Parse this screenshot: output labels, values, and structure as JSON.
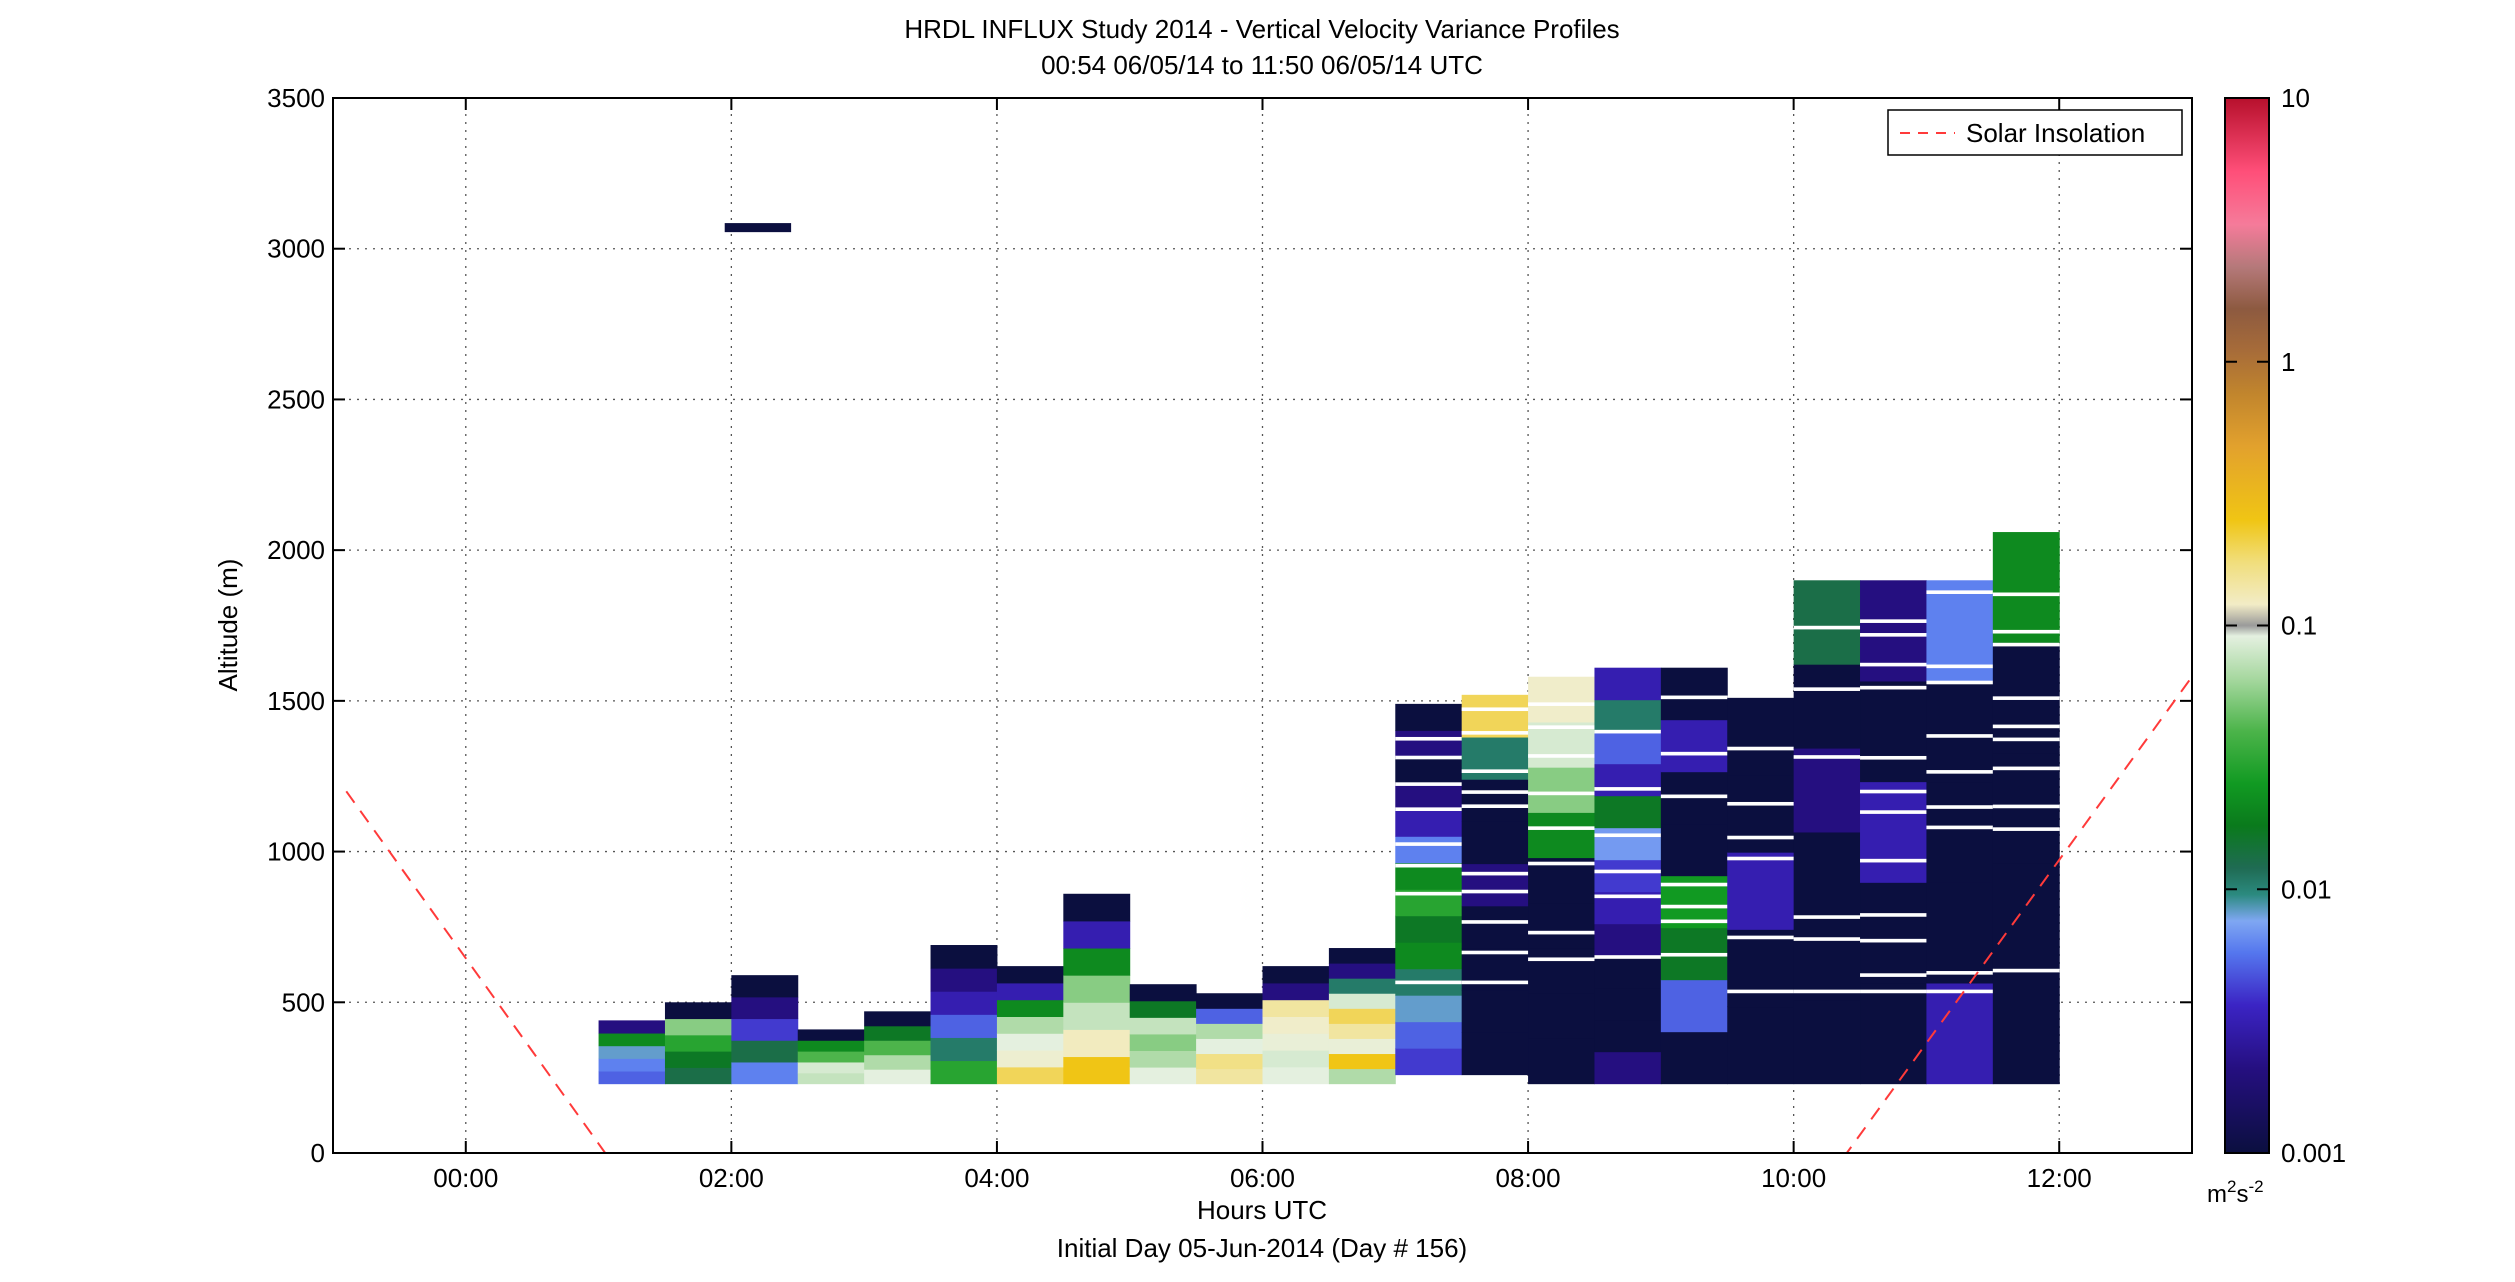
{
  "chart_data": {
    "type": "heatmap",
    "title": "HRDL INFLUX Study 2014 - Vertical Velocity Variance Profiles",
    "subtitle": "00:54 06/05/14 to 11:50 06/05/14  UTC",
    "xlabel": "Hours UTC",
    "xlabel2": "Initial Day 05-Jun-2014 (Day # 156)",
    "ylabel": "Altitude (m)",
    "xlim": [
      -1,
      13
    ],
    "ylim": [
      0,
      3500
    ],
    "xticks": [
      0,
      2,
      4,
      6,
      8,
      10,
      12
    ],
    "xtick_labels": [
      "00:00",
      "02:00",
      "04:00",
      "06:00",
      "08:00",
      "10:00",
      "12:00"
    ],
    "yticks": [
      0,
      500,
      1000,
      1500,
      2000,
      2500,
      3000,
      3500
    ],
    "ytick_labels": [
      "0",
      "500",
      "1000",
      "1500",
      "2000",
      "2500",
      "3000",
      "3500"
    ],
    "grid": true,
    "legend": {
      "position": "top-right",
      "entries": [
        {
          "label": "Solar Insolation",
          "color": "#ff3a3a",
          "style": "dashed"
        }
      ]
    },
    "colorbar": {
      "scale": "log",
      "range": [
        0.001,
        10
      ],
      "ticks": [
        0.001,
        0.01,
        0.1,
        1,
        10
      ],
      "tick_labels": [
        "0.001",
        "0.01",
        "0.1",
        "1",
        "10"
      ],
      "unit": "m",
      "unit_sup1": "2",
      "unit_mid": "s",
      "unit_sup2": "-2"
    },
    "time_bins": [
      1.0,
      1.5,
      2.0,
      2.5,
      3.0,
      3.5,
      4.0,
      4.5,
      5.0,
      5.5,
      6.0,
      6.5,
      7.0,
      7.5,
      8.0,
      8.5,
      9.0,
      9.5,
      10.0,
      10.5,
      11.0,
      11.5
    ],
    "profiles": [
      {
        "t": 1.0,
        "bottom": 230,
        "top": 440,
        "values": [
          0.005,
          0.006,
          0.008,
          0.02,
          0.002
        ]
      },
      {
        "t": 1.5,
        "bottom": 230,
        "top": 500,
        "values": [
          0.012,
          0.015,
          0.03,
          0.05,
          0.001
        ]
      },
      {
        "t": 2.0,
        "bottom": 230,
        "top": 590,
        "values": [
          0.006,
          0.012,
          0.004,
          0.002,
          0.001
        ]
      },
      {
        "t": 2.5,
        "bottom": 230,
        "top": 410,
        "values": [
          0.07,
          0.08,
          0.04,
          0.02,
          0.001
        ]
      },
      {
        "t": 3.0,
        "bottom": 230,
        "top": 470,
        "values": [
          0.09,
          0.06,
          0.04,
          0.015,
          0.001
        ]
      },
      {
        "t": 3.5,
        "bottom": 230,
        "top": 690,
        "values": [
          0.03,
          0.01,
          0.005,
          0.003,
          0.002,
          0.001
        ]
      },
      {
        "t": 4.0,
        "bottom": 230,
        "top": 620,
        "values": [
          0.2,
          0.11,
          0.09,
          0.06,
          0.02,
          0.003,
          0.001
        ]
      },
      {
        "t": 4.5,
        "bottom": 230,
        "top": 860,
        "values": [
          0.25,
          0.13,
          0.07,
          0.05,
          0.02,
          0.003,
          0.001
        ]
      },
      {
        "t": 5.0,
        "bottom": 230,
        "top": 560,
        "values": [
          0.09,
          0.06,
          0.05,
          0.07,
          0.015,
          0.001
        ]
      },
      {
        "t": 5.5,
        "bottom": 230,
        "top": 530,
        "values": [
          0.15,
          0.17,
          0.09,
          0.06,
          0.005,
          0.001
        ]
      },
      {
        "t": 6.0,
        "bottom": 230,
        "top": 620,
        "values": [
          0.09,
          0.08,
          0.1,
          0.12,
          0.15,
          0.002,
          0.001
        ]
      },
      {
        "t": 6.5,
        "bottom": 230,
        "top": 680,
        "values": [
          0.06,
          0.25,
          0.1,
          0.15,
          0.2,
          0.08,
          0.01,
          0.002,
          0.001
        ]
      },
      {
        "t": 7.0,
        "bottom": 260,
        "top": 1490,
        "values": [
          0.004,
          0.005,
          0.008,
          0.01,
          0.02,
          0.015,
          0.03,
          0.02,
          0.006,
          0.003,
          0.002,
          0.001,
          0.002,
          0.001
        ]
      },
      {
        "t": 7.5,
        "bottom": 260,
        "top": 1520,
        "values": [
          0.001,
          0.001,
          0.001,
          0.001,
          0.002,
          0.001,
          0.001,
          0.01,
          0.2
        ]
      },
      {
        "t": 8.0,
        "bottom": 230,
        "top": 1580,
        "values": [
          0.001,
          0.001,
          0.001,
          0.001,
          0.001,
          0.02,
          0.05,
          0.08,
          0.12
        ]
      },
      {
        "t": 8.5,
        "bottom": 230,
        "top": 1610,
        "values": [
          0.002,
          0.001,
          0.001,
          0.001,
          0.002,
          0.003,
          0.004,
          0.007,
          0.015,
          0.003,
          0.005,
          0.01,
          0.003
        ]
      },
      {
        "t": 9.0,
        "bottom": 230,
        "top": 1610,
        "values": [
          0.001,
          0.005,
          0.015,
          0.025,
          0.001,
          0.001,
          0.003,
          0.001
        ]
      },
      {
        "t": 9.5,
        "bottom": 230,
        "top": 1510,
        "values": [
          0.001,
          0.001,
          0.003,
          0.001,
          0.001
        ]
      },
      {
        "t": 10.0,
        "bottom": 230,
        "top": 1900,
        "values": [
          0.001,
          0.001,
          0.001,
          0.002,
          0.001,
          0.012
        ]
      },
      {
        "t": 10.5,
        "bottom": 230,
        "top": 1900,
        "values": [
          0.001,
          0.001,
          0.003,
          0.001,
          0.002
        ]
      },
      {
        "t": 11.0,
        "bottom": 230,
        "top": 1900,
        "values": [
          0.003,
          0.001,
          0.001,
          0.001,
          0.006
        ]
      },
      {
        "t": 11.5,
        "bottom": 230,
        "top": 2060,
        "values": [
          0.001,
          0.001,
          0.001,
          0.001,
          0.02
        ]
      }
    ],
    "solar_insolation": [
      {
        "x": -0.9,
        "y": 1200
      },
      {
        "x": 1.05,
        "y": 0
      },
      {
        "x": 10.4,
        "y": 0
      },
      {
        "x": 13.0,
        "y": 1580
      }
    ],
    "isolated_cells": [
      {
        "t0": 1.95,
        "t1": 2.45,
        "y0": 3055,
        "y1": 3085,
        "value": 0.001
      }
    ]
  }
}
